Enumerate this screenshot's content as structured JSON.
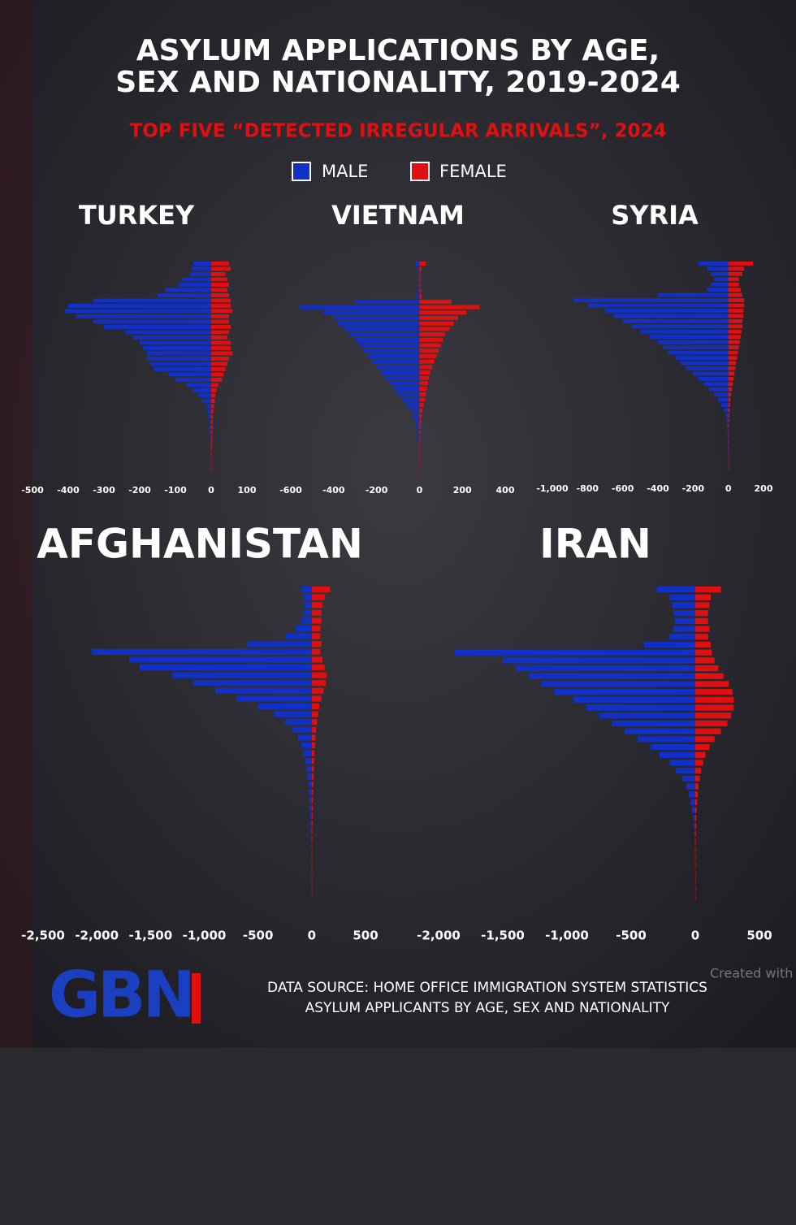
{
  "title_lines": [
    "ASYLUM APPLICATIONS BY AGE,",
    "SEX AND NATIONALITY, 2019-2024"
  ],
  "subtitle": "TOP FIVE “DETECTED IRREGULAR ARRIVALS”, 2024",
  "source_lines": [
    "DATA SOURCE: HOME OFFICE IMMIGRATION SYSTEM STATISTICS",
    "ASYLUM APPLICANTS BY AGE, SEX AND NATIONALITY"
  ],
  "logo": "GBN",
  "watermark": "Created with",
  "chart_data": [
    {
      "type": "pyramid",
      "title": "TURKEY",
      "xlim": [
        -500,
        100
      ],
      "xticks": [
        -500,
        -400,
        -300,
        -200,
        -100,
        0,
        100
      ],
      "series": [
        {
          "name": "MALE",
          "color": "#1030c8",
          "values": [
            -50,
            -55,
            -60,
            -80,
            -90,
            -130,
            -150,
            -330,
            -400,
            -410,
            -380,
            -330,
            -300,
            -240,
            -220,
            -200,
            -190,
            -180,
            -180,
            -170,
            -160,
            -120,
            -100,
            -70,
            -50,
            -35,
            -25,
            -15,
            -10,
            -8,
            -6,
            -5,
            -4,
            -3,
            -3,
            -2,
            -2,
            -1,
            -1,
            -1
          ]
        },
        {
          "name": "FEMALE",
          "color": "#e01010",
          "values": [
            50,
            55,
            40,
            45,
            50,
            45,
            50,
            55,
            55,
            60,
            50,
            50,
            55,
            50,
            45,
            55,
            55,
            60,
            50,
            45,
            40,
            35,
            30,
            20,
            15,
            12,
            10,
            8,
            6,
            5,
            4,
            4,
            3,
            3,
            2,
            2,
            1,
            1,
            1,
            1
          ]
        }
      ]
    },
    {
      "type": "pyramid",
      "title": "VIETNAM",
      "xlim": [
        -600,
        400
      ],
      "xticks": [
        -600,
        -400,
        -200,
        0,
        200,
        400
      ],
      "series": [
        {
          "name": "MALE",
          "color": "#1030c8",
          "values": [
            -20,
            -10,
            -5,
            -5,
            -8,
            -10,
            -15,
            -300,
            -560,
            -450,
            -400,
            -380,
            -350,
            -330,
            -300,
            -280,
            -260,
            -240,
            -220,
            -200,
            -180,
            -160,
            -140,
            -120,
            -100,
            -80,
            -60,
            -45,
            -30,
            -20,
            -15,
            -10,
            -8,
            -6,
            -4,
            -3,
            -2,
            -2,
            -1,
            -1
          ]
        },
        {
          "name": "FEMALE",
          "color": "#e01010",
          "values": [
            30,
            10,
            5,
            5,
            5,
            8,
            10,
            150,
            280,
            220,
            180,
            160,
            140,
            120,
            110,
            100,
            90,
            80,
            70,
            60,
            50,
            45,
            40,
            35,
            30,
            25,
            20,
            15,
            10,
            8,
            6,
            5,
            4,
            3,
            2,
            2,
            1,
            1,
            1,
            1
          ]
        }
      ]
    },
    {
      "type": "pyramid",
      "title": "SYRIA",
      "xlim": [
        -1000,
        200
      ],
      "xticks": [
        {
          "value": -1000,
          "label": "-1,000"
        },
        -800,
        -600,
        -400,
        -200,
        0,
        200
      ],
      "series": [
        {
          "name": "MALE",
          "color": "#1030c8",
          "values": [
            -170,
            -120,
            -100,
            -80,
            -100,
            -120,
            -400,
            -880,
            -800,
            -700,
            -650,
            -600,
            -550,
            -500,
            -450,
            -400,
            -370,
            -340,
            -300,
            -270,
            -240,
            -200,
            -170,
            -140,
            -110,
            -80,
            -60,
            -40,
            -25,
            -15,
            -10,
            -8,
            -6,
            -5,
            -4,
            -3,
            -2,
            -2,
            -1,
            -1
          ]
        },
        {
          "name": "FEMALE",
          "color": "#e01010",
          "values": [
            140,
            90,
            80,
            60,
            60,
            70,
            80,
            90,
            90,
            85,
            85,
            80,
            80,
            75,
            70,
            65,
            60,
            55,
            50,
            45,
            40,
            35,
            30,
            25,
            20,
            15,
            12,
            10,
            8,
            6,
            5,
            4,
            3,
            3,
            2,
            2,
            1,
            1,
            1,
            1
          ]
        }
      ]
    },
    {
      "type": "pyramid",
      "title": "AFGHANISTAN",
      "xlim": [
        -2500,
        500
      ],
      "xticks": [
        {
          "value": -2500,
          "label": "-2,500"
        },
        {
          "value": -2000,
          "label": "-2,000"
        },
        {
          "value": -1500,
          "label": "-1,500"
        },
        {
          "value": -1000,
          "label": "-1,000"
        },
        -500,
        0,
        500
      ],
      "series": [
        {
          "name": "MALE",
          "color": "#1030c8",
          "values": [
            -100,
            -80,
            -70,
            -80,
            -100,
            -150,
            -250,
            -600,
            -2050,
            -1700,
            -1600,
            -1300,
            -1100,
            -900,
            -700,
            -500,
            -350,
            -250,
            -180,
            -130,
            -100,
            -80,
            -60,
            -50,
            -40,
            -30,
            -25,
            -20,
            -18,
            -15,
            -12,
            -10,
            -8,
            -6,
            -5,
            -4,
            -3,
            -2,
            -2,
            -1
          ]
        },
        {
          "name": "FEMALE",
          "color": "#e01010",
          "values": [
            170,
            120,
            100,
            90,
            90,
            80,
            80,
            90,
            80,
            100,
            120,
            140,
            130,
            110,
            90,
            70,
            60,
            50,
            40,
            35,
            30,
            25,
            22,
            20,
            18,
            15,
            12,
            10,
            9,
            8,
            7,
            6,
            5,
            4,
            3,
            3,
            2,
            2,
            1,
            1
          ]
        }
      ]
    },
    {
      "type": "pyramid",
      "title": "IRAN",
      "xlim": [
        -2000,
        500
      ],
      "xticks": [
        {
          "value": -2000,
          "label": "-2,000"
        },
        {
          "value": -1500,
          "label": "-1,500"
        },
        {
          "value": -1000,
          "label": "-1,000"
        },
        -500,
        0,
        500
      ],
      "series": [
        {
          "name": "MALE",
          "color": "#1030c8",
          "values": [
            -300,
            -200,
            -180,
            -170,
            -160,
            -170,
            -200,
            -400,
            -1880,
            -1500,
            -1400,
            -1300,
            -1200,
            -1100,
            -950,
            -850,
            -750,
            -650,
            -550,
            -450,
            -350,
            -280,
            -200,
            -150,
            -100,
            -70,
            -50,
            -35,
            -25,
            -15,
            -10,
            -8,
            -6,
            -5,
            -4,
            -3,
            -2,
            -2,
            -1,
            -1
          ]
        },
        {
          "name": "FEMALE",
          "color": "#e01010",
          "values": [
            200,
            120,
            110,
            100,
            100,
            110,
            100,
            120,
            130,
            150,
            180,
            220,
            260,
            290,
            300,
            300,
            280,
            250,
            200,
            150,
            110,
            80,
            60,
            45,
            35,
            25,
            20,
            15,
            10,
            8,
            6,
            5,
            4,
            3,
            2,
            2,
            1,
            1,
            1,
            1
          ]
        }
      ]
    }
  ]
}
